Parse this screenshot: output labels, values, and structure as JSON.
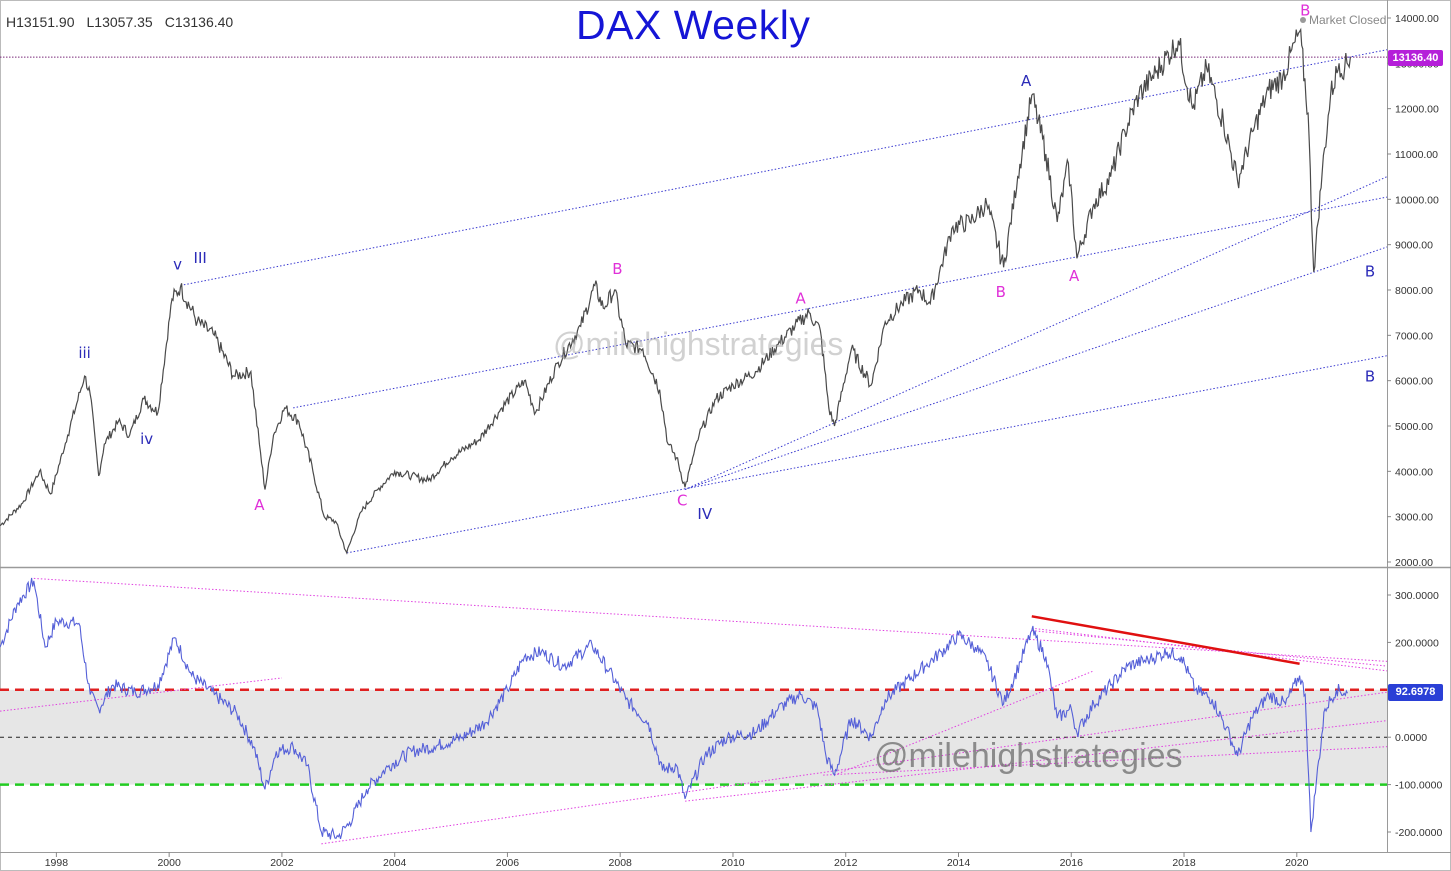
{
  "header": {
    "high": "H13151.90",
    "low": "L13057.35",
    "close": "C13136.40",
    "title": "DAX Weekly",
    "status": "Market Closed"
  },
  "price_tag": "13136.40",
  "osc_tag": "92.6978",
  "watermarks": {
    "top": "@milehighstrategies",
    "bottom": "@milehighstrategies"
  },
  "colors": {
    "price_line": "#4a4a4a",
    "osc_line": "#5560d8",
    "trend_blue": "#3a3ad0",
    "trend_magenta": "#e040e0",
    "wave_blue": "#2b2bb8",
    "wave_magenta": "#e030d8",
    "red_dashed": "#e02020",
    "green_dashed": "#22cc22",
    "red_trend": "#e01010",
    "band_fill": "#e6e6e6",
    "price_tag": "#b51fd9",
    "osc_tag": "#2a3fd6",
    "title": "#1515d6"
  },
  "chart_data": [
    {
      "type": "line",
      "name": "DAX Weekly price",
      "x_unit": "year",
      "xlim": [
        1997.0,
        2021.6
      ],
      "y_unit": "index points",
      "ylim": [
        2000,
        14100
      ],
      "y_ticks": [
        "14000.00",
        "13000.00",
        "12000.00",
        "11000.00",
        "10000.00",
        "9000.00",
        "8000.00",
        "7000.00",
        "6000.00",
        "5000.00",
        "4000.00",
        "3000.00",
        "2000.00"
      ],
      "x_ticks": [
        "1998",
        "2000",
        "2002",
        "2004",
        "2006",
        "2008",
        "2010",
        "2012",
        "2014",
        "2016",
        "2018",
        "2020"
      ],
      "series": [
        {
          "values": [
            [
              1997.0,
              2800
            ],
            [
              1997.4,
              3300
            ],
            [
              1997.7,
              4000
            ],
            [
              1997.9,
              3500
            ],
            [
              1998.2,
              4800
            ],
            [
              1998.5,
              6100
            ],
            [
              1998.6,
              5700
            ],
            [
              1998.75,
              3900
            ],
            [
              1998.85,
              4600
            ],
            [
              1999.1,
              5100
            ],
            [
              1999.3,
              4800
            ],
            [
              1999.55,
              5600
            ],
            [
              1999.8,
              5300
            ],
            [
              2000.05,
              7800
            ],
            [
              2000.2,
              8060
            ],
            [
              2000.5,
              7300
            ],
            [
              2000.8,
              7000
            ],
            [
              2001.15,
              6100
            ],
            [
              2001.45,
              6200
            ],
            [
              2001.6,
              4600
            ],
            [
              2001.7,
              3600
            ],
            [
              2001.85,
              4800
            ],
            [
              2002.05,
              5400
            ],
            [
              2002.3,
              5100
            ],
            [
              2002.55,
              4000
            ],
            [
              2002.75,
              3000
            ],
            [
              2002.95,
              2900
            ],
            [
              2003.15,
              2200
            ],
            [
              2003.4,
              3100
            ],
            [
              2003.7,
              3600
            ],
            [
              2004.0,
              4000
            ],
            [
              2004.3,
              3900
            ],
            [
              2004.6,
              3800
            ],
            [
              2005.0,
              4300
            ],
            [
              2005.5,
              4700
            ],
            [
              2005.9,
              5400
            ],
            [
              2006.3,
              6000
            ],
            [
              2006.5,
              5300
            ],
            [
              2006.9,
              6400
            ],
            [
              2007.3,
              7200
            ],
            [
              2007.55,
              8100
            ],
            [
              2007.7,
              7600
            ],
            [
              2007.9,
              8000
            ],
            [
              2008.1,
              6800
            ],
            [
              2008.4,
              6700
            ],
            [
              2008.7,
              5800
            ],
            [
              2008.85,
              4600
            ],
            [
              2009.0,
              4300
            ],
            [
              2009.15,
              3650
            ],
            [
              2009.4,
              4800
            ],
            [
              2009.7,
              5600
            ],
            [
              2010.0,
              5900
            ],
            [
              2010.4,
              6200
            ],
            [
              2010.8,
              6800
            ],
            [
              2011.1,
              7200
            ],
            [
              2011.35,
              7500
            ],
            [
              2011.55,
              7100
            ],
            [
              2011.7,
              5400
            ],
            [
              2011.8,
              5000
            ],
            [
              2012.1,
              6700
            ],
            [
              2012.45,
              5900
            ],
            [
              2012.7,
              7300
            ],
            [
              2013.0,
              7700
            ],
            [
              2013.3,
              8000
            ],
            [
              2013.5,
              7700
            ],
            [
              2013.9,
              9400
            ],
            [
              2014.2,
              9500
            ],
            [
              2014.5,
              9900
            ],
            [
              2014.8,
              8500
            ],
            [
              2015.05,
              10500
            ],
            [
              2015.3,
              12300
            ],
            [
              2015.55,
              11000
            ],
            [
              2015.75,
              9500
            ],
            [
              2015.95,
              10800
            ],
            [
              2016.1,
              8700
            ],
            [
              2016.4,
              9900
            ],
            [
              2016.7,
              10500
            ],
            [
              2016.95,
              11500
            ],
            [
              2017.2,
              12300
            ],
            [
              2017.5,
              12800
            ],
            [
              2017.9,
              13500
            ],
            [
              2018.15,
              12000
            ],
            [
              2018.4,
              12900
            ],
            [
              2018.7,
              11700
            ],
            [
              2018.95,
              10400
            ],
            [
              2019.25,
              11600
            ],
            [
              2019.5,
              12400
            ],
            [
              2019.75,
              12700
            ],
            [
              2020.05,
              13700
            ],
            [
              2020.2,
              11900
            ],
            [
              2020.3,
              8400
            ],
            [
              2020.45,
              10600
            ],
            [
              2020.6,
              12300
            ],
            [
              2020.75,
              13000
            ],
            [
              2020.85,
              12900
            ],
            [
              2020.95,
              13136
            ]
          ]
        }
      ],
      "wave_labels": [
        {
          "text": "iii",
          "color": "blue",
          "x": 1998.5,
          "y": 6500
        },
        {
          "text": "iv",
          "color": "blue",
          "x": 1999.6,
          "y": 4600
        },
        {
          "text": "v",
          "color": "blue",
          "x": 2000.15,
          "y": 8450
        },
        {
          "text": "III",
          "color": "blue",
          "x": 2000.55,
          "y": 8600
        },
        {
          "text": "A",
          "color": "magenta",
          "x": 2001.6,
          "y": 3150
        },
        {
          "text": "C",
          "color": "magenta",
          "x": 2009.1,
          "y": 3250
        },
        {
          "text": "IV",
          "color": "blue",
          "x": 2009.5,
          "y": 2950
        },
        {
          "text": "B",
          "color": "magenta",
          "x": 2007.95,
          "y": 8350
        },
        {
          "text": "A",
          "color": "magenta",
          "x": 2011.2,
          "y": 7700
        },
        {
          "text": "B",
          "color": "magenta",
          "x": 2014.75,
          "y": 7850
        },
        {
          "text": "A",
          "color": "blue",
          "x": 2015.2,
          "y": 12500
        },
        {
          "text": "A",
          "color": "magenta",
          "x": 2016.05,
          "y": 8200
        },
        {
          "text": "B",
          "color": "magenta",
          "x": 2020.15,
          "y": 14050
        },
        {
          "text": "B",
          "color": "blue",
          "x": 2021.3,
          "y": 8300
        },
        {
          "text": "B",
          "color": "blue",
          "x": 2021.3,
          "y": 5980
        }
      ],
      "trendlines": [
        {
          "from": [
            2000.2,
            8100
          ],
          "to": [
            2021.6,
            13300
          ]
        },
        {
          "from": [
            2002.2,
            5400
          ],
          "to": [
            2021.6,
            10050
          ]
        },
        {
          "from": [
            2009.15,
            3600
          ],
          "to": [
            2021.6,
            10500
          ]
        },
        {
          "from": [
            2009.15,
            3600
          ],
          "to": [
            2021.6,
            8950
          ]
        },
        {
          "from": [
            2003.15,
            2200
          ],
          "to": [
            2021.6,
            6550
          ]
        }
      ],
      "horizontal_line": 13136.4,
      "grid": false,
      "legend": "none"
    },
    {
      "type": "line",
      "name": "oscillator",
      "x_unit": "year",
      "xlim": [
        1997.0,
        2021.6
      ],
      "ylim": [
        -250,
        350
      ],
      "y_ticks": [
        "300.0000",
        "200.0000",
        "100.0000",
        "0.0000",
        "-100.0000",
        "-200.0000"
      ],
      "series": [
        {
          "values": [
            [
              1997.0,
              190
            ],
            [
              1997.3,
              280
            ],
            [
              1997.6,
              330
            ],
            [
              1997.8,
              190
            ],
            [
              1998.0,
              245
            ],
            [
              1998.4,
              240
            ],
            [
              1998.6,
              90
            ],
            [
              1998.75,
              60
            ],
            [
              1999.0,
              110
            ],
            [
              1999.4,
              95
            ],
            [
              1999.8,
              110
            ],
            [
              2000.1,
              210
            ],
            [
              2000.4,
              130
            ],
            [
              2000.8,
              90
            ],
            [
              2001.2,
              50
            ],
            [
              2001.5,
              -20
            ],
            [
              2001.7,
              -110
            ],
            [
              2001.9,
              -30
            ],
            [
              2002.2,
              -20
            ],
            [
              2002.45,
              -60
            ],
            [
              2002.7,
              -200
            ],
            [
              2003.0,
              -210
            ],
            [
              2003.2,
              -180
            ],
            [
              2003.5,
              -110
            ],
            [
              2003.9,
              -60
            ],
            [
              2004.3,
              -30
            ],
            [
              2004.7,
              -20
            ],
            [
              2005.2,
              0
            ],
            [
              2005.6,
              30
            ],
            [
              2006.0,
              100
            ],
            [
              2006.3,
              170
            ],
            [
              2006.6,
              180
            ],
            [
              2007.0,
              150
            ],
            [
              2007.5,
              195
            ],
            [
              2007.8,
              140
            ],
            [
              2008.1,
              80
            ],
            [
              2008.5,
              30
            ],
            [
              2008.75,
              -70
            ],
            [
              2009.0,
              -60
            ],
            [
              2009.15,
              -130
            ],
            [
              2009.5,
              -40
            ],
            [
              2009.9,
              0
            ],
            [
              2010.4,
              10
            ],
            [
              2010.8,
              60
            ],
            [
              2011.2,
              90
            ],
            [
              2011.5,
              60
            ],
            [
              2011.65,
              -40
            ],
            [
              2011.8,
              -80
            ],
            [
              2012.1,
              40
            ],
            [
              2012.45,
              0
            ],
            [
              2012.7,
              80
            ],
            [
              2013.0,
              110
            ],
            [
              2013.4,
              150
            ],
            [
              2013.7,
              180
            ],
            [
              2014.0,
              215
            ],
            [
              2014.3,
              190
            ],
            [
              2014.5,
              160
            ],
            [
              2014.8,
              70
            ],
            [
              2015.1,
              160
            ],
            [
              2015.3,
              225
            ],
            [
              2015.55,
              170
            ],
            [
              2015.75,
              40
            ],
            [
              2016.0,
              60
            ],
            [
              2016.1,
              10
            ],
            [
              2016.4,
              70
            ],
            [
              2016.7,
              110
            ],
            [
              2017.0,
              150
            ],
            [
              2017.4,
              165
            ],
            [
              2017.7,
              180
            ],
            [
              2017.95,
              170
            ],
            [
              2018.2,
              100
            ],
            [
              2018.5,
              80
            ],
            [
              2018.75,
              20
            ],
            [
              2018.95,
              -40
            ],
            [
              2019.2,
              40
            ],
            [
              2019.5,
              90
            ],
            [
              2019.8,
              70
            ],
            [
              2020.05,
              130
            ],
            [
              2020.15,
              90
            ],
            [
              2020.25,
              -200
            ],
            [
              2020.35,
              -90
            ],
            [
              2020.5,
              60
            ],
            [
              2020.7,
              100
            ],
            [
              2020.9,
              92.7
            ]
          ]
        }
      ],
      "levels": {
        "upper_red": 100,
        "zero": 0,
        "lower_green": -100
      },
      "band": [
        -100,
        100
      ],
      "trendlines": [
        {
          "from": [
            1997.6,
            335
          ],
          "to": [
            2021.6,
            160
          ],
          "color": "magenta"
        },
        {
          "from": [
            1997.0,
            55
          ],
          "to": [
            2002.0,
            125
          ],
          "color": "magenta"
        },
        {
          "from": [
            2002.7,
            -225
          ],
          "to": [
            2021.6,
            95
          ],
          "color": "magenta"
        },
        {
          "from": [
            2009.15,
            -135
          ],
          "to": [
            2021.6,
            35
          ],
          "color": "magenta"
        },
        {
          "from": [
            2015.3,
            225
          ],
          "to": [
            2021.6,
            150
          ],
          "color": "magenta"
        },
        {
          "from": [
            2015.3,
            230
          ],
          "to": [
            2021.6,
            140
          ],
          "color": "magenta"
        },
        {
          "from": [
            2011.8,
            -80
          ],
          "to": [
            2016.4,
            140
          ],
          "color": "magenta"
        },
        {
          "from": [
            2011.6,
            -80
          ],
          "to": [
            2021.6,
            -20
          ],
          "color": "magenta"
        }
      ],
      "red_trendline": {
        "from": [
          2015.3,
          255
        ],
        "to": [
          2020.05,
          155
        ]
      },
      "grid": false,
      "legend": "none"
    }
  ]
}
